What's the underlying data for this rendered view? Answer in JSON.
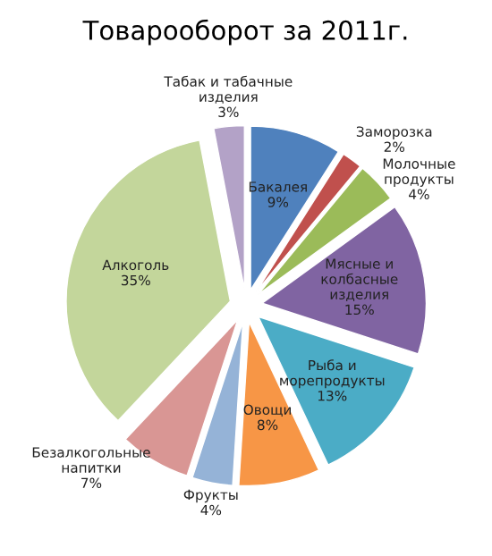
{
  "chart_data": {
    "type": "pie",
    "title": "Товарооборот за 2011г.",
    "categories": [
      "Бакалея",
      "Заморозка",
      "Молочные\nпродукты",
      "Мясные и\nколбасные\nизделия",
      "Рыба и\nморепродукты",
      "Овощи",
      "Фрукты",
      "Безалкогольные\nнапитки",
      "Алкоголь",
      "Табак и табачные\nизделия"
    ],
    "values": [
      9,
      2,
      4,
      15,
      13,
      8,
      4,
      7,
      35,
      3
    ],
    "colors": [
      "#4f81bd",
      "#c0504d",
      "#9bbb59",
      "#8064a2",
      "#4bacc6",
      "#f79646",
      "#95b3d7",
      "#d99694",
      "#c3d69b",
      "#b3a2c7"
    ],
    "value_labels": [
      "9%",
      "2%",
      "4%",
      "15%",
      "13%",
      "8%",
      "4%",
      "7%",
      "35%",
      "3%"
    ],
    "legend": false
  }
}
